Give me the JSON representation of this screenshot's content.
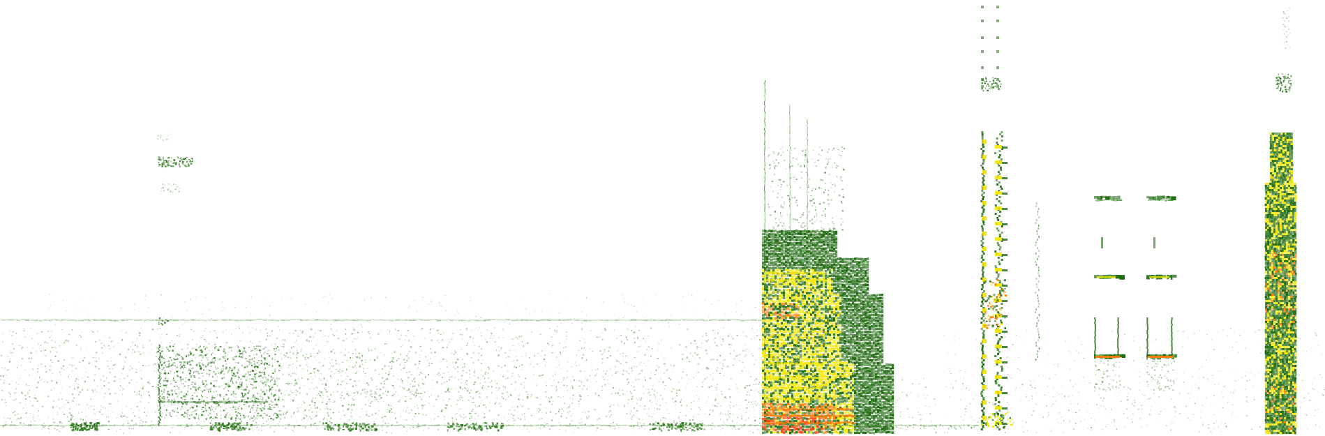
{
  "palette": {
    "background": "#ffffff",
    "low": "#2e7d1a",
    "low_dark": "#1f6b10",
    "mid": "#9acd32",
    "high": "#f2e600",
    "peak": "#ff7a00",
    "max": "#ff3a00"
  }
}
